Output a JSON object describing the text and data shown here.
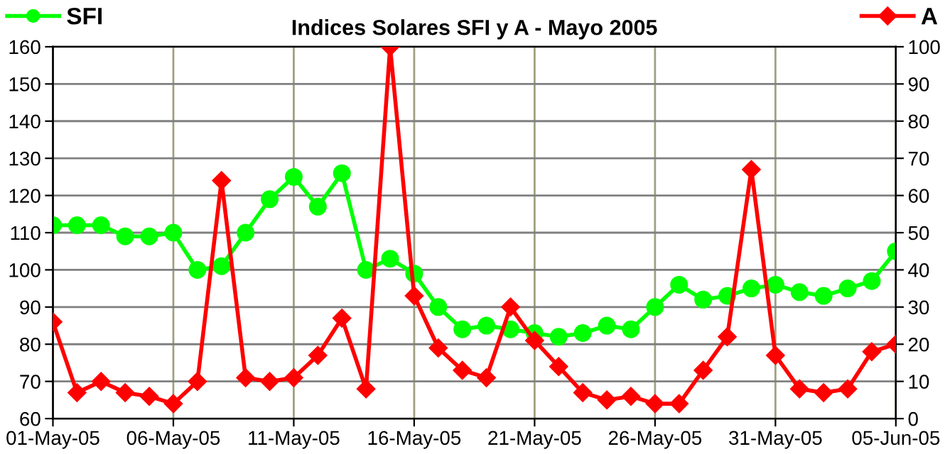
{
  "chart_data": {
    "type": "line",
    "title": "Indices Solares SFI y A - Mayo 2005",
    "x": [
      "2005-05-01",
      "2005-05-02",
      "2005-05-03",
      "2005-05-04",
      "2005-05-05",
      "2005-05-06",
      "2005-05-07",
      "2005-05-08",
      "2005-05-09",
      "2005-05-10",
      "2005-05-11",
      "2005-05-12",
      "2005-05-13",
      "2005-05-14",
      "2005-05-15",
      "2005-05-16",
      "2005-05-17",
      "2005-05-18",
      "2005-05-19",
      "2005-05-20",
      "2005-05-21",
      "2005-05-22",
      "2005-05-23",
      "2005-05-24",
      "2005-05-25",
      "2005-05-26",
      "2005-05-27",
      "2005-05-28",
      "2005-05-29",
      "2005-05-30",
      "2005-05-31",
      "2005-06-01",
      "2005-06-02",
      "2005-06-03",
      "2005-06-04",
      "2005-06-05"
    ],
    "series": [
      {
        "name": "SFI",
        "color": "#00ff00",
        "marker": "circle",
        "values": [
          112,
          112,
          112,
          109,
          109,
          110,
          100,
          101,
          110,
          119,
          125,
          117,
          126,
          100,
          103,
          99,
          90,
          84,
          85,
          84,
          83,
          82,
          83,
          85,
          84,
          90,
          96,
          92,
          93,
          95,
          96,
          94,
          93,
          95,
          97,
          105
        ]
      },
      {
        "name": "A",
        "color": "#ff0000",
        "marker": "diamond",
        "axis": "y2",
        "values": [
          26,
          7,
          10,
          7,
          6,
          4,
          10,
          64,
          11,
          10,
          11,
          17,
          27,
          8,
          100,
          33,
          19,
          13,
          11,
          30,
          21,
          14,
          7,
          5,
          6,
          4,
          4,
          13,
          22,
          67,
          17,
          8,
          7,
          8,
          18,
          20
        ]
      }
    ],
    "xlim": [
      "2005-05-01",
      "2005-06-05"
    ],
    "xticks": [
      {
        "value": "2005-05-01",
        "label": "01-May-05"
      },
      {
        "value": "2005-05-06",
        "label": "06-May-05"
      },
      {
        "value": "2005-05-11",
        "label": "11-May-05"
      },
      {
        "value": "2005-05-16",
        "label": "16-May-05"
      },
      {
        "value": "2005-05-21",
        "label": "21-May-05"
      },
      {
        "value": "2005-05-26",
        "label": "26-May-05"
      },
      {
        "value": "2005-05-31",
        "label": "31-May-05"
      },
      {
        "value": "2005-06-05",
        "label": "05-Jun-05"
      }
    ],
    "ylim": [
      60,
      160
    ],
    "yticks": [
      60,
      70,
      80,
      90,
      100,
      110,
      120,
      130,
      140,
      150,
      160
    ],
    "y2lim": [
      0,
      100
    ],
    "y2ticks": [
      0,
      10,
      20,
      30,
      40,
      50,
      60,
      70,
      80,
      90,
      100
    ],
    "grid": true,
    "legend": "top",
    "line_style": "solid"
  }
}
